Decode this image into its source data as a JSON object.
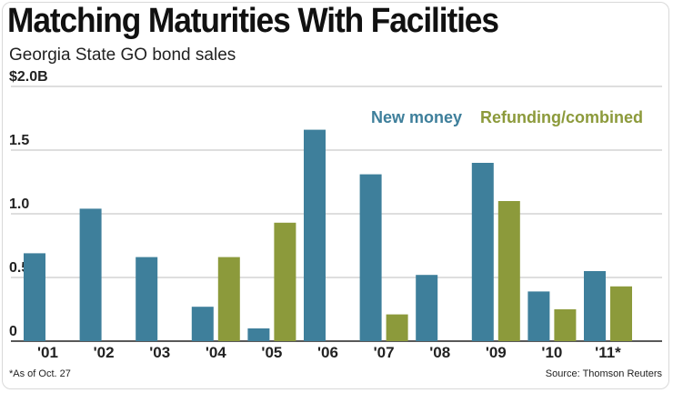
{
  "title": "Matching Maturities With Facilities",
  "subtitle": "Georgia State GO bond sales",
  "footnote": "*As of Oct. 27",
  "source": "Source: Thomson Reuters",
  "chart_data": {
    "type": "bar",
    "categories": [
      "'01",
      "'02",
      "'03",
      "'04",
      "'05",
      "'06",
      "'07",
      "'08",
      "'09",
      "'10",
      "'11*"
    ],
    "series": [
      {
        "name": "New money",
        "color": "#3e7f9b",
        "values": [
          0.69,
          1.04,
          0.66,
          0.27,
          0.1,
          1.66,
          1.31,
          0.52,
          1.4,
          0.39,
          0.55
        ]
      },
      {
        "name": "Refunding/combined",
        "color": "#8c9a3b",
        "values": [
          0,
          0,
          0,
          0.66,
          0.93,
          0,
          0.21,
          0,
          1.1,
          0.25,
          0.43
        ]
      }
    ],
    "yticks": [
      "0",
      "0.5",
      "1.0",
      "1.5",
      "$2.0B"
    ],
    "ylim": [
      0,
      2.0
    ],
    "grid": true,
    "legend_position": "top-right"
  }
}
